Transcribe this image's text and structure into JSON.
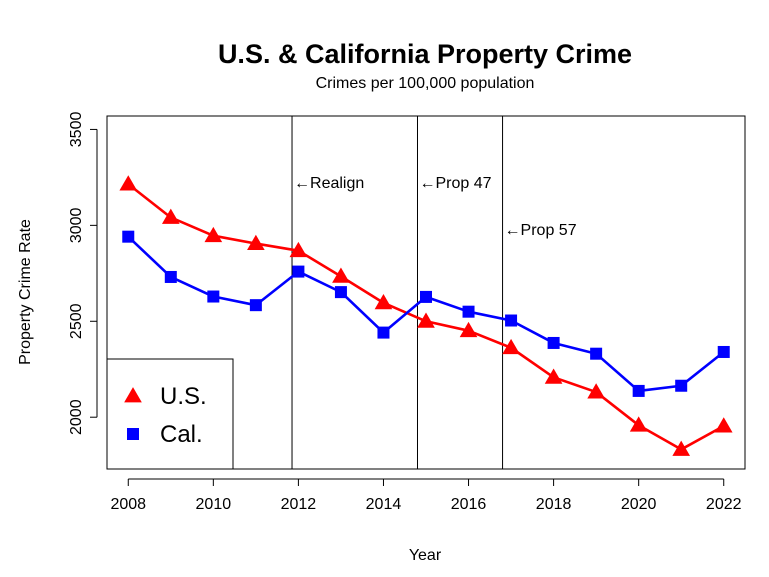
{
  "chart_data": {
    "type": "line",
    "title": "U.S. & California Property Crime",
    "subtitle": "Crimes per 100,000 population",
    "xlabel": "Year",
    "ylabel": "Property Crime Rate",
    "x": [
      2008,
      2009,
      2010,
      2011,
      2012,
      2013,
      2014,
      2015,
      2016,
      2017,
      2018,
      2019,
      2020,
      2021,
      2022
    ],
    "xlim": [
      2007.5,
      2022.5
    ],
    "ylim": [
      1730,
      3570
    ],
    "x_ticks": [
      2008,
      2010,
      2012,
      2014,
      2016,
      2018,
      2020,
      2022
    ],
    "y_ticks": [
      2000,
      2500,
      3000,
      3500
    ],
    "grid": false,
    "legend_position": "bottom-left",
    "series": [
      {
        "name": "U.S.",
        "color": "#ff0000",
        "marker": "triangle",
        "values": [
          3215,
          3041,
          2946,
          2905,
          2868,
          2734,
          2596,
          2500,
          2451,
          2362,
          2208,
          2131,
          1958,
          1832,
          1954
        ]
      },
      {
        "name": "Cal.",
        "color": "#0000ff",
        "marker": "square",
        "values": [
          2941,
          2731,
          2629,
          2584,
          2759,
          2652,
          2441,
          2627,
          2550,
          2504,
          2387,
          2331,
          2137,
          2164,
          2340
        ]
      }
    ],
    "annotations": [
      {
        "x": 2011.85,
        "label": "←Realign",
        "label_y": 3225
      },
      {
        "x": 2014.8,
        "label": "←Prop 47",
        "label_y": 3225
      },
      {
        "x": 2016.8,
        "label": "←Prop 57",
        "label_y": 2980
      }
    ]
  }
}
